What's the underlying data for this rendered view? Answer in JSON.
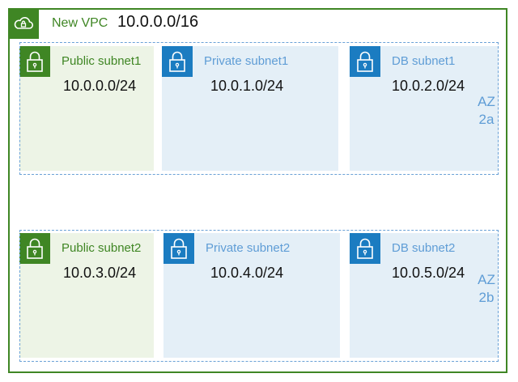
{
  "vpc": {
    "label": "New VPC",
    "cidr": "10.0.0.0/16"
  },
  "azs": [
    {
      "line1": "AZ",
      "line2": "2a"
    },
    {
      "line1": "AZ",
      "line2": "2b"
    }
  ],
  "subnets": [
    {
      "name": "Public subnet1",
      "cidr": "10.0.0.0/24",
      "kind": "public"
    },
    {
      "name": "Private subnet1",
      "cidr": "10.0.1.0/24",
      "kind": "private"
    },
    {
      "name": "DB subnet1",
      "cidr": "10.0.2.0/24",
      "kind": "private"
    },
    {
      "name": "Public subnet2",
      "cidr": "10.0.3.0/24",
      "kind": "public"
    },
    {
      "name": "Private subnet2",
      "cidr": "10.0.4.0/24",
      "kind": "private"
    },
    {
      "name": "DB subnet2",
      "cidr": "10.0.5.0/24",
      "kind": "private"
    }
  ],
  "icons": {
    "vpc": "cloud-lock-icon",
    "subnet": "padlock-icon"
  },
  "colors": {
    "public": "#3f8624",
    "private": "#1b7cc1",
    "az_border": "#6aa1d6"
  }
}
